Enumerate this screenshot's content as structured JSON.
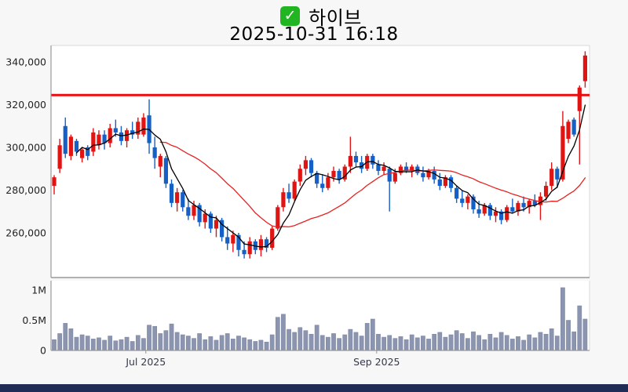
{
  "header": {
    "check_glyph": "✓",
    "title": "하이브",
    "timestamp": "2025-10-31 16:18"
  },
  "colors": {
    "up": "#e11414",
    "down": "#1560c6",
    "reference_line": "#ec0c0c",
    "ma_short": "#000000",
    "ma_long": "#e62222",
    "volume_bar": "#8c95af",
    "volume_bar_edge": "#7881a0",
    "plot_bg": "#ffffff",
    "figure_bg": "#f7f7f7",
    "spine": "#999999",
    "spine_light": "#d9d9d9",
    "price_tick_label": "#222222",
    "month_tick_label": "#333950",
    "footer": "#1f2c55",
    "check_green": "#21b521"
  },
  "chart_data": {
    "type": "candlestick_with_volume",
    "title": "하이브",
    "subtitle": "2025-10-31 16:18",
    "legend_position": "none",
    "grid": false,
    "price_axis": {
      "tick_labels": [
        "340,000",
        "320,000",
        "300,000",
        "280,000",
        "260,000"
      ],
      "tick_values": [
        340000,
        320000,
        300000,
        280000,
        260000
      ],
      "ylim": [
        239000,
        348000
      ]
    },
    "volume_axis": {
      "tick_labels": [
        "1M",
        "0.5M",
        "0"
      ],
      "tick_values": [
        1000000,
        500000,
        0
      ],
      "ylim": [
        0,
        1150000
      ]
    },
    "x_axis": {
      "ticks": [
        {
          "label": "Jul 2025",
          "index": 16.4
        },
        {
          "label": "Sep 2025",
          "index": 57.7
        }
      ]
    },
    "reference_line": {
      "value": 324500
    },
    "moving_averages": [
      {
        "name": "MA-short",
        "window": 5
      },
      {
        "name": "MA-long",
        "window": 20
      }
    ],
    "candle_format": "[open, high, low, close, volume]",
    "candles": [
      [
        282000,
        287000,
        278000,
        286000,
        180000
      ],
      [
        290000,
        304000,
        288000,
        301000,
        280000
      ],
      [
        310000,
        314000,
        295000,
        297000,
        450000
      ],
      [
        296000,
        306000,
        294000,
        305000,
        360000
      ],
      [
        303000,
        304000,
        296000,
        298000,
        220000
      ],
      [
        295000,
        300000,
        293000,
        299000,
        260000
      ],
      [
        300000,
        301000,
        294000,
        296000,
        240000
      ],
      [
        298000,
        309000,
        296000,
        307000,
        190000
      ],
      [
        301000,
        308000,
        299000,
        306000,
        210000
      ],
      [
        306000,
        308000,
        299000,
        302000,
        170000
      ],
      [
        302000,
        311000,
        300000,
        309000,
        240000
      ],
      [
        309000,
        313000,
        305000,
        307000,
        160000
      ],
      [
        307000,
        310000,
        301000,
        303000,
        180000
      ],
      [
        303000,
        309000,
        300000,
        308000,
        220000
      ],
      [
        308000,
        312000,
        304000,
        306000,
        150000
      ],
      [
        306000,
        314000,
        304000,
        312000,
        250000
      ],
      [
        306000,
        316000,
        305000,
        314000,
        200000
      ],
      [
        315000,
        322500,
        297000,
        302000,
        420000
      ],
      [
        300000,
        305000,
        290000,
        295000,
        400000
      ],
      [
        291000,
        297000,
        286000,
        296000,
        280000
      ],
      [
        295000,
        296000,
        281000,
        283000,
        330000
      ],
      [
        283000,
        285000,
        272000,
        274000,
        440000
      ],
      [
        274000,
        281000,
        270000,
        279000,
        300000
      ],
      [
        279000,
        280000,
        270000,
        272000,
        260000
      ],
      [
        272000,
        276000,
        266000,
        268000,
        240000
      ],
      [
        268000,
        275000,
        266000,
        273000,
        200000
      ],
      [
        273000,
        274000,
        263000,
        265000,
        280000
      ],
      [
        265000,
        271000,
        262000,
        269000,
        180000
      ],
      [
        269000,
        270000,
        260000,
        262000,
        230000
      ],
      [
        262000,
        268000,
        258000,
        266000,
        170000
      ],
      [
        266000,
        267000,
        256000,
        258000,
        250000
      ],
      [
        258000,
        263000,
        252000,
        255000,
        280000
      ],
      [
        255000,
        261000,
        251000,
        259000,
        190000
      ],
      [
        259000,
        260000,
        249000,
        252000,
        240000
      ],
      [
        252000,
        256000,
        248000,
        250000,
        210000
      ],
      [
        250000,
        258000,
        248000,
        256000,
        180000
      ],
      [
        256000,
        257000,
        250000,
        252000,
        150000
      ],
      [
        252000,
        259000,
        249000,
        257000,
        170000
      ],
      [
        257000,
        258000,
        251000,
        253000,
        140000
      ],
      [
        253000,
        263000,
        252000,
        262000,
        260000
      ],
      [
        262000,
        273000,
        261000,
        272000,
        550000
      ],
      [
        272000,
        281000,
        270000,
        279000,
        600000
      ],
      [
        279000,
        283000,
        274000,
        276000,
        350000
      ],
      [
        276000,
        285000,
        275000,
        284000,
        300000
      ],
      [
        284000,
        292000,
        282000,
        290000,
        380000
      ],
      [
        290000,
        296000,
        287000,
        294000,
        330000
      ],
      [
        294000,
        295000,
        286000,
        288000,
        270000
      ],
      [
        288000,
        289000,
        281000,
        283000,
        420000
      ],
      [
        283000,
        287000,
        279000,
        281000,
        250000
      ],
      [
        281000,
        288000,
        280000,
        286000,
        220000
      ],
      [
        286000,
        291000,
        284000,
        289000,
        280000
      ],
      [
        289000,
        290000,
        283000,
        285000,
        200000
      ],
      [
        285000,
        292000,
        284000,
        291000,
        260000
      ],
      [
        291000,
        305000,
        288000,
        296000,
        350000
      ],
      [
        296000,
        298000,
        291000,
        293000,
        300000
      ],
      [
        293000,
        296000,
        288000,
        290000,
        240000
      ],
      [
        290000,
        297000,
        289000,
        296000,
        450000
      ],
      [
        296000,
        297000,
        290000,
        292000,
        520000
      ],
      [
        292000,
        294000,
        287000,
        289000,
        270000
      ],
      [
        289000,
        293000,
        287000,
        291000,
        220000
      ],
      [
        290000,
        291000,
        270000,
        284000,
        250000
      ],
      [
        284000,
        290000,
        283000,
        288000,
        200000
      ],
      [
        288000,
        292000,
        287000,
        291000,
        230000
      ],
      [
        291000,
        293000,
        288000,
        289000,
        180000
      ],
      [
        289000,
        292000,
        286000,
        291000,
        260000
      ],
      [
        291000,
        292000,
        287000,
        288000,
        210000
      ],
      [
        288000,
        291000,
        284000,
        286000,
        240000
      ],
      [
        286000,
        290000,
        285000,
        289000,
        190000
      ],
      [
        289000,
        291000,
        283000,
        285000,
        270000
      ],
      [
        285000,
        288000,
        280000,
        282000,
        300000
      ],
      [
        282000,
        287000,
        281000,
        286000,
        220000
      ],
      [
        286000,
        287000,
        279000,
        281000,
        260000
      ],
      [
        281000,
        282000,
        274000,
        276000,
        330000
      ],
      [
        276000,
        280000,
        272000,
        274000,
        280000
      ],
      [
        274000,
        278000,
        271000,
        277000,
        200000
      ],
      [
        277000,
        278000,
        269000,
        271000,
        310000
      ],
      [
        271000,
        275000,
        267000,
        269000,
        250000
      ],
      [
        269000,
        274000,
        268000,
        273000,
        180000
      ],
      [
        273000,
        274000,
        266000,
        268000,
        270000
      ],
      [
        268000,
        272000,
        265000,
        270000,
        210000
      ],
      [
        270000,
        271000,
        264000,
        266000,
        300000
      ],
      [
        266000,
        273000,
        265000,
        272000,
        250000
      ],
      [
        272000,
        276000,
        269000,
        270000,
        190000
      ],
      [
        270000,
        275000,
        268000,
        274000,
        230000
      ],
      [
        274000,
        277000,
        270000,
        272000,
        170000
      ],
      [
        272000,
        276000,
        269000,
        275000,
        260000
      ],
      [
        275000,
        278000,
        272000,
        273000,
        210000
      ],
      [
        273000,
        279000,
        266000,
        277000,
        300000
      ],
      [
        277000,
        284000,
        275000,
        282000,
        270000
      ],
      [
        282000,
        293000,
        280000,
        290000,
        360000
      ],
      [
        290000,
        291000,
        281000,
        285000,
        240000
      ],
      [
        285000,
        317000,
        284000,
        310000,
        1040000
      ],
      [
        304000,
        313000,
        302000,
        312000,
        500000
      ],
      [
        313000,
        314000,
        305000,
        306000,
        310000
      ],
      [
        317000,
        329000,
        292000,
        328000,
        740000
      ],
      [
        331000,
        345000,
        328000,
        343000,
        520000
      ]
    ]
  }
}
